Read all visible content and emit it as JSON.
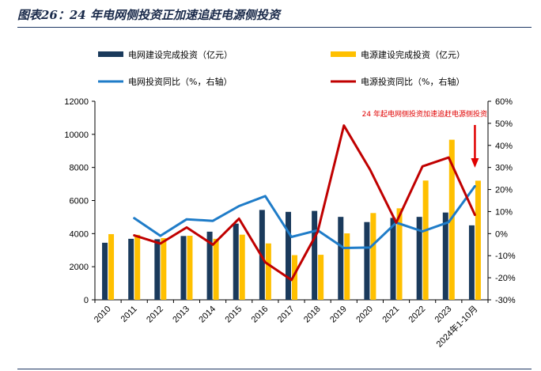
{
  "title": "图表26：24 年电网侧投资正加速追赶电源侧投资",
  "legend": {
    "grid_bar": "电网建设完成投资（亿元）",
    "power_bar": "电源建设完成投资（亿元）",
    "grid_line": "电网投资同比（%，右轴）",
    "power_line": "电源投资同比（%，右轴）"
  },
  "annotation": "24 年起电网侧投资加速追赶电源侧投资",
  "colors": {
    "grid_bar": "#1a3a5c",
    "power_bar": "#ffc000",
    "grid_line": "#1f7cc8",
    "power_line": "#c00000",
    "arrow": "#e00000"
  },
  "chart_data": {
    "type": "bar",
    "categories": [
      "2010",
      "2011",
      "2012",
      "2013",
      "2014",
      "2015",
      "2016",
      "2017",
      "2018",
      "2019",
      "2020",
      "2021",
      "2022",
      "2023",
      "2024年1-10月"
    ],
    "series": [
      {
        "name": "电网建设完成投资（亿元）",
        "type": "bar",
        "axis": "left",
        "values": [
          3448,
          3687,
          3661,
          3856,
          4118,
          4603,
          5431,
          5315,
          5373,
          5012,
          4699,
          4951,
          5012,
          5275,
          4500
        ]
      },
      {
        "name": "电源建设完成投资（亿元）",
        "type": "bar",
        "axis": "left",
        "values": [
          3969,
          3927,
          3732,
          3872,
          3686,
          3936,
          3408,
          2700,
          2721,
          4015,
          5244,
          5530,
          7208,
          9675,
          7200
        ]
      },
      {
        "name": "电网投资同比（%，右轴）",
        "type": "line",
        "axis": "right",
        "values": [
          null,
          7,
          -1,
          6.5,
          5.8,
          12.5,
          17,
          -1.5,
          1.5,
          -6.5,
          -6.3,
          5,
          1,
          5.2,
          21.5
        ]
      },
      {
        "name": "电源投资同比（%，右轴）",
        "type": "line",
        "axis": "right",
        "values": [
          null,
          -0.8,
          -4.5,
          2.8,
          -5,
          6.8,
          -13,
          -21,
          0.8,
          49,
          29,
          5,
          30.5,
          34.5,
          8.5
        ]
      }
    ],
    "ylim_left": [
      0,
      12000
    ],
    "yticks_left": [
      "0",
      "2000",
      "4000",
      "6000",
      "8000",
      "10000",
      "12000"
    ],
    "ylim_right": [
      -30,
      60
    ],
    "yticks_right": [
      "-30%",
      "-20%",
      "-10%",
      "0%",
      "10%",
      "20%",
      "30%",
      "40%",
      "50%",
      "60%"
    ],
    "legend_position": "top"
  }
}
